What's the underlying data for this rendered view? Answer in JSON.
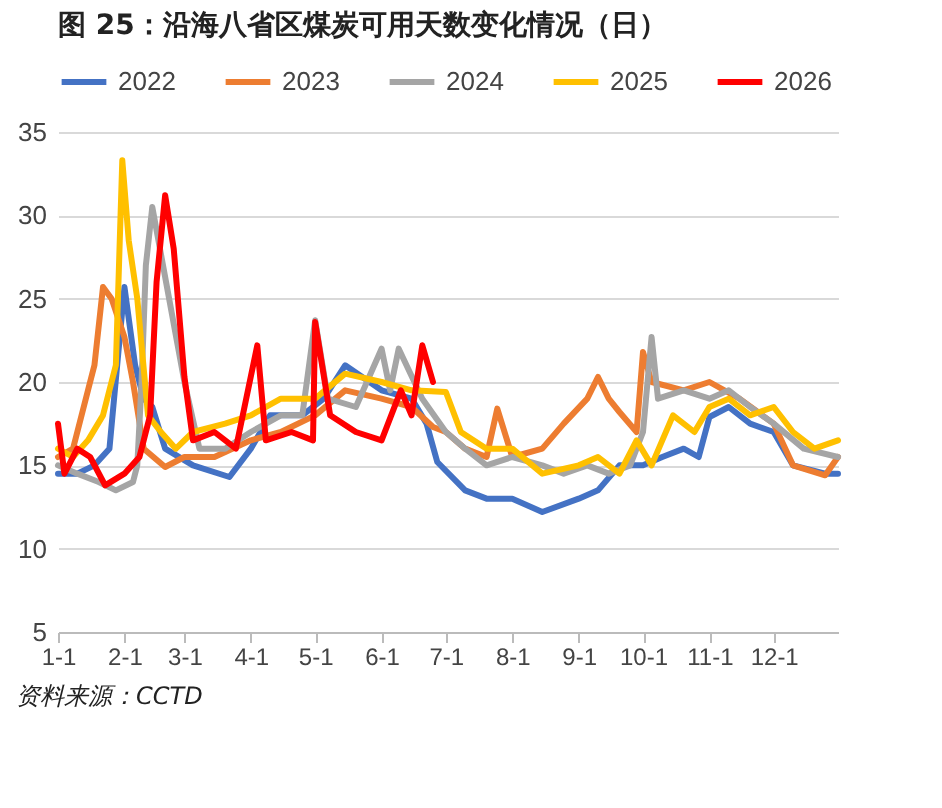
{
  "chart_data": {
    "type": "line",
    "title": "图 25：沿海八省区煤炭可用天数变化情况（日）",
    "annotations": [
      "资料来源：CCTD"
    ],
    "xlim": [
      "--01-01",
      "--12-31"
    ],
    "xticks": [
      {
        "value": "--01-01",
        "label": "1-1"
      },
      {
        "value": "--02-01",
        "label": "2-1"
      },
      {
        "value": "--03-01",
        "label": "3-1"
      },
      {
        "value": "--04-01",
        "label": "4-1"
      },
      {
        "value": "--05-01",
        "label": "5-1"
      },
      {
        "value": "--06-01",
        "label": "6-1"
      },
      {
        "value": "--07-01",
        "label": "7-1"
      },
      {
        "value": "--08-01",
        "label": "8-1"
      },
      {
        "value": "--09-01",
        "label": "9-1"
      },
      {
        "value": "--10-01",
        "label": "10-1"
      },
      {
        "value": "--11-01",
        "label": "11-1"
      },
      {
        "value": "--12-01",
        "label": "12-1"
      }
    ],
    "ylim": [
      5,
      35
    ],
    "yticks": [
      5,
      10,
      15,
      20,
      25,
      30,
      35
    ],
    "grid": "y",
    "legend": "top",
    "series": [
      {
        "name": "2022",
        "color": "#4472c4",
        "x": [
          "--01-01",
          "--01-10",
          "--01-18",
          "--01-25",
          "--02-01",
          "--02-06",
          "--02-10",
          "--02-14",
          "--02-20",
          "--03-05",
          "--03-22",
          "--04-01",
          "--04-10",
          "--04-25",
          "--05-05",
          "--05-15",
          "--06-01",
          "--06-15",
          "--06-22",
          "--06-27",
          "--07-10",
          "--07-20",
          "--08-01",
          "--08-15",
          "--09-01",
          "--09-10",
          "--09-20",
          "--10-01",
          "--10-10",
          "--10-20",
          "--10-27",
          "--11-01",
          "--11-10",
          "--11-20",
          "--12-01",
          "--12-10",
          "--12-25",
          "--12-31"
        ],
        "values": [
          14.5,
          14.5,
          15,
          16,
          25.7,
          21,
          19,
          18.5,
          16,
          15,
          14.3,
          16,
          18,
          18,
          19,
          21,
          19.5,
          19,
          17.5,
          15.2,
          13.5,
          13,
          13,
          12.2,
          13,
          13.5,
          15,
          15,
          15.5,
          16,
          15.5,
          17.9,
          18.5,
          17.5,
          17,
          15,
          14.5,
          14.5
        ]
      },
      {
        "name": "2023",
        "color": "#ed7d31",
        "x": [
          "--01-01",
          "--01-08",
          "--01-15",
          "--01-18",
          "--01-22",
          "--01-26",
          "--02-01",
          "--02-05",
          "--02-10",
          "--02-20",
          "--03-01",
          "--03-15",
          "--04-01",
          "--04-15",
          "--05-01",
          "--05-15",
          "--06-01",
          "--06-15",
          "--06-25",
          "--07-01",
          "--07-10",
          "--07-20",
          "--07-25",
          "--08-01",
          "--08-15",
          "--08-25",
          "--09-05",
          "--09-10",
          "--09-15",
          "--09-20",
          "--09-28",
          "--10-01",
          "--10-05",
          "--10-20",
          "--11-01",
          "--11-15",
          "--12-01",
          "--12-10",
          "--12-25",
          "--12-31"
        ],
        "values": [
          15.5,
          16,
          19.5,
          21,
          25.7,
          25,
          22.7,
          20,
          16,
          14.9,
          15.5,
          15.5,
          16.5,
          17,
          18,
          19.5,
          19,
          18.5,
          17.3,
          17,
          16,
          15.5,
          18.4,
          15.5,
          16,
          17.5,
          19,
          20.3,
          19,
          18.2,
          17,
          21.8,
          20,
          19.5,
          20,
          19,
          17.5,
          15,
          14.4,
          15.5
        ]
      },
      {
        "name": "2024",
        "color": "#a5a5a5",
        "x": [
          "--01-01",
          "--01-10",
          "--01-20",
          "--01-28",
          "--02-05",
          "--02-07",
          "--02-09",
          "--02-11",
          "--02-14",
          "--02-19",
          "--03-01",
          "--03-08",
          "--03-20",
          "--04-01",
          "--04-15",
          "--04-25",
          "--05-01",
          "--05-07",
          "--05-20",
          "--06-01",
          "--06-05",
          "--06-09",
          "--06-20",
          "--07-01",
          "--07-10",
          "--07-20",
          "--08-01",
          "--08-15",
          "--08-25",
          "--09-05",
          "--09-15",
          "--09-25",
          "--10-01",
          "--10-05",
          "--10-08",
          "--10-20",
          "--11-01",
          "--11-10",
          "--11-20",
          "--12-01",
          "--12-15",
          "--12-31"
        ],
        "values": [
          15,
          14.5,
          14,
          13.5,
          14,
          15,
          20,
          27,
          30.5,
          27,
          20,
          16,
          16,
          17,
          18,
          18,
          23.7,
          19,
          18.5,
          22,
          19.5,
          22,
          19,
          17,
          16,
          15,
          15.5,
          15,
          14.5,
          15,
          14.5,
          15,
          17,
          22.7,
          19,
          19.5,
          19,
          19.5,
          18.5,
          17.5,
          16,
          15.5
        ]
      },
      {
        "name": "2025",
        "color": "#ffc000",
        "x": [
          "--01-01",
          "--01-08",
          "--01-15",
          "--01-22",
          "--01-28",
          "--01-31",
          "--02-03",
          "--02-07",
          "--02-12",
          "--02-18",
          "--02-25",
          "--03-05",
          "--03-20",
          "--04-01",
          "--04-15",
          "--05-01",
          "--05-15",
          "--06-01",
          "--06-15",
          "--07-01",
          "--07-08",
          "--07-20",
          "--08-01",
          "--08-15",
          "--09-01",
          "--09-10",
          "--09-20",
          "--09-28",
          "--10-05",
          "--10-15",
          "--10-25",
          "--11-01",
          "--11-10",
          "--11-20",
          "--12-01",
          "--12-10",
          "--12-20",
          "--12-31"
        ],
        "values": [
          16,
          15.5,
          16.5,
          18,
          21,
          33.3,
          28.5,
          25,
          18,
          17,
          16,
          17,
          17.5,
          18,
          19,
          19,
          20.5,
          20,
          19.5,
          19.4,
          17,
          16,
          16,
          14.5,
          15,
          15.5,
          14.5,
          16.5,
          15,
          18,
          17,
          18.5,
          19,
          18,
          18.5,
          17,
          16,
          16.5
        ]
      },
      {
        "name": "2026",
        "color": "#ff0000",
        "x": [
          "--01-01",
          "--01-04",
          "--01-10",
          "--01-16",
          "--01-23",
          "--02-01",
          "--02-08",
          "--02-13",
          "--02-16",
          "--02-20",
          "--02-24",
          "--03-01",
          "--03-05",
          "--03-15",
          "--03-25",
          "--04-04",
          "--04-08",
          "--04-20",
          "--04-30",
          "--05-01",
          "--05-08",
          "--05-20",
          "--06-01",
          "--06-10",
          "--06-15",
          "--06-20",
          "--06-25"
        ],
        "values": [
          17.5,
          14.5,
          16,
          15.5,
          13.8,
          14.5,
          15.5,
          18,
          26,
          31.2,
          28,
          20.3,
          16.5,
          17,
          16,
          22.2,
          16.5,
          17,
          16.5,
          23.6,
          18,
          17,
          16.5,
          19.5,
          18,
          22.2,
          20
        ]
      }
    ]
  }
}
